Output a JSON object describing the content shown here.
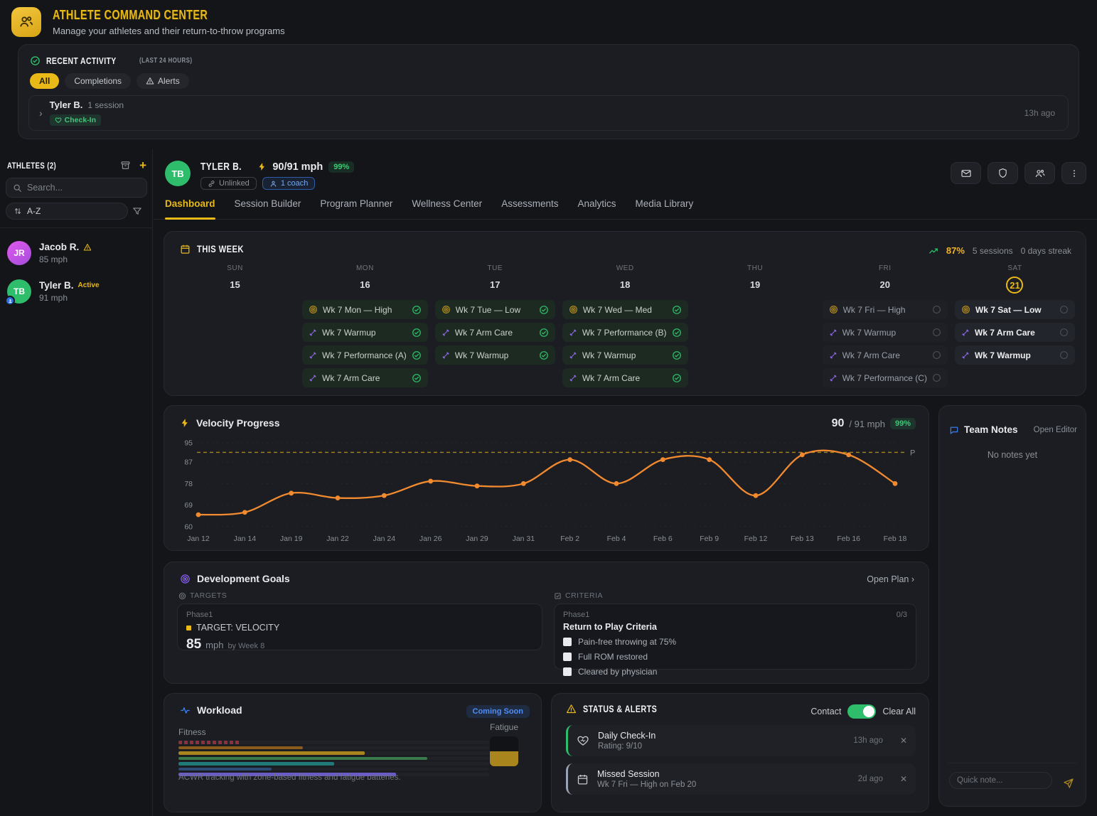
{
  "app": {
    "title": "ATHLETE COMMAND CENTER",
    "subtitle": "Manage your athletes and their return-to-throw programs"
  },
  "recent_activity": {
    "title": "RECENT ACTIVITY",
    "range": "(LAST 24 HOURS)",
    "filters": [
      {
        "label": "All",
        "active": true
      },
      {
        "label": "Completions",
        "active": false
      },
      {
        "label": "Alerts",
        "active": false
      }
    ],
    "entry": {
      "athlete": "Tyler B.",
      "summary": "1 session",
      "badge": "Check-In",
      "time": "13h ago"
    }
  },
  "sidebar": {
    "title": "ATHLETES (2)",
    "search_placeholder": "Search...",
    "sort_label": "A-Z",
    "athletes": [
      {
        "initials": "JR",
        "name": "Jacob R.",
        "velocity": "85 mph",
        "warning": true,
        "avatar_color": "#cf4fe0"
      },
      {
        "initials": "TB",
        "name": "Tyler B.",
        "tag": "Active",
        "velocity": "91 mph",
        "avatar_color": "#2ebd6b"
      }
    ]
  },
  "athlete_header": {
    "initials": "TB",
    "name": "TYLER B.",
    "velocity": "90/91 mph",
    "percent_badge": "99%",
    "link_badge": "Unlinked",
    "coach_badge": "1 coach"
  },
  "tabs": {
    "items": [
      "Dashboard",
      "Session Builder",
      "Program Planner",
      "Wellness Center",
      "Assessments",
      "Analytics",
      "Media Library"
    ],
    "active": "Dashboard"
  },
  "this_week": {
    "title": "THIS WEEK",
    "adherence": "87%",
    "sessions": "5 sessions",
    "streak": "0 days streak",
    "days": [
      {
        "label": "SUN",
        "date": "15",
        "today": false,
        "cards": []
      },
      {
        "label": "MON",
        "date": "16",
        "today": false,
        "cards": [
          {
            "icon": "target-icon",
            "label": "Wk 7 Mon — High",
            "status": "done"
          },
          {
            "icon": "dumbbell-icon",
            "label": "Wk 7 Warmup",
            "status": "done"
          },
          {
            "icon": "dumbbell-icon",
            "label": "Wk 7 Performance (A)",
            "status": "done"
          },
          {
            "icon": "dumbbell-icon",
            "label": "Wk 7 Arm Care",
            "status": "done"
          }
        ]
      },
      {
        "label": "TUE",
        "date": "17",
        "today": false,
        "cards": [
          {
            "icon": "target-icon",
            "label": "Wk 7 Tue — Low",
            "status": "done"
          },
          {
            "icon": "dumbbell-icon",
            "label": "Wk 7 Arm Care",
            "status": "done"
          },
          {
            "icon": "dumbbell-icon",
            "label": "Wk 7 Warmup",
            "status": "done"
          }
        ]
      },
      {
        "label": "WED",
        "date": "18",
        "today": false,
        "cards": [
          {
            "icon": "target-icon",
            "label": "Wk 7 Wed — Med",
            "status": "done"
          },
          {
            "icon": "dumbbell-icon",
            "label": "Wk 7 Performance (B)",
            "status": "done"
          },
          {
            "icon": "dumbbell-icon",
            "label": "Wk 7 Warmup",
            "status": "done"
          },
          {
            "icon": "dumbbell-icon",
            "label": "Wk 7 Arm Care",
            "status": "done"
          }
        ]
      },
      {
        "label": "THU",
        "date": "19",
        "today": false,
        "cards": []
      },
      {
        "label": "FRI",
        "date": "20",
        "today": false,
        "cards": [
          {
            "icon": "target-icon",
            "label": "Wk 7 Fri — High",
            "status": "pending"
          },
          {
            "icon": "dumbbell-icon",
            "label": "Wk 7 Warmup",
            "status": "pending"
          },
          {
            "icon": "dumbbell-icon",
            "label": "Wk 7 Arm Care",
            "status": "pending"
          },
          {
            "icon": "dumbbell-icon",
            "label": "Wk 7 Performance (C)",
            "status": "pending"
          }
        ]
      },
      {
        "label": "SAT",
        "date": "21",
        "today": true,
        "cards": [
          {
            "icon": "target-icon",
            "label": "Wk 7 Sat — Low",
            "status": "pending"
          },
          {
            "icon": "dumbbell-icon",
            "label": "Wk 7 Arm Care",
            "status": "pending"
          },
          {
            "icon": "dumbbell-icon",
            "label": "Wk 7 Warmup",
            "status": "pending"
          }
        ]
      }
    ]
  },
  "velocity": {
    "title": "Velocity Progress",
    "current": "90",
    "target_text": "/ 91 mph",
    "percent_badge": "99%",
    "target_label": "P"
  },
  "chart_data": {
    "type": "line",
    "title": "Velocity Progress",
    "x": [
      "Jan 12",
      "Jan 14",
      "Jan 19",
      "Jan 22",
      "Jan 24",
      "Jan 26",
      "Jan 29",
      "Jan 31",
      "Feb 2",
      "Feb 4",
      "Feb 6",
      "Feb 9",
      "Feb 12",
      "Feb 13",
      "Feb 16",
      "Feb 18"
    ],
    "series": [
      {
        "name": "Velocity (mph)",
        "values": [
          65,
          66,
          74,
          72,
          73,
          79,
          77,
          78,
          88,
          78,
          88,
          88,
          73,
          90,
          90,
          78
        ]
      }
    ],
    "target_line": 91,
    "ylim": [
      60,
      95
    ],
    "yticks": [
      95,
      87,
      78,
      69,
      60
    ],
    "line_color": "#f28a30",
    "target_color": "#a8861e",
    "grid": true,
    "legend": "none"
  },
  "team_notes": {
    "title": "Team Notes",
    "action": "Open Editor",
    "empty": "No notes yet",
    "input_placeholder": "Quick note..."
  },
  "development_goals": {
    "title": "Development Goals",
    "action": "Open Plan ›",
    "targets_label": "TARGETS",
    "criteria_label": "CRITERIA",
    "target_card": {
      "phase": "Phase1",
      "label": "TARGET: VELOCITY",
      "value": "85",
      "unit": "mph",
      "deadline": "by Week 8"
    },
    "criteria_card": {
      "phase": "Phase1",
      "progress": "0/3",
      "title": "Return to Play Criteria",
      "items": [
        "Pain-free throwing at 75%",
        "Full ROM restored",
        "Cleared by physician"
      ]
    }
  },
  "workload": {
    "title": "Workload",
    "badge": "Coming Soon",
    "fitness_label": "Fitness",
    "fatigue_label": "Fatigue",
    "fatigue_level": 50,
    "caption": "ACWR tracking with zone-based fitness and fatigue batteries.",
    "bars": [
      {
        "value": 20,
        "color": "#8d3039",
        "dashed": true
      },
      {
        "value": 40,
        "color": "#8a5d1c",
        "dashed": false
      },
      {
        "value": 60,
        "color": "#a8861d",
        "dashed": false
      },
      {
        "value": 80,
        "color": "#39794a",
        "dashed": false
      },
      {
        "value": 50,
        "color": "#1f7a78",
        "dashed": false
      },
      {
        "value": 30,
        "color": "#2b4a74",
        "dashed": false
      },
      {
        "value": 70,
        "color": "#6a5bc7",
        "dashed": false
      }
    ]
  },
  "status_alerts": {
    "title": "STATUS & ALERTS",
    "contact_label": "Contact",
    "toggle_on": true,
    "clear_label": "Clear All",
    "items": [
      {
        "icon": "heart-icon",
        "title": "Daily Check-In",
        "subtitle": "Rating: 9/10",
        "time": "13h ago",
        "accent": "#2ebd6b"
      },
      {
        "icon": "calendar-icon",
        "title": "Missed Session",
        "subtitle": "Wk 7 Fri — High on Feb 20",
        "time": "2d ago",
        "accent": "#9aa3b5"
      }
    ]
  }
}
